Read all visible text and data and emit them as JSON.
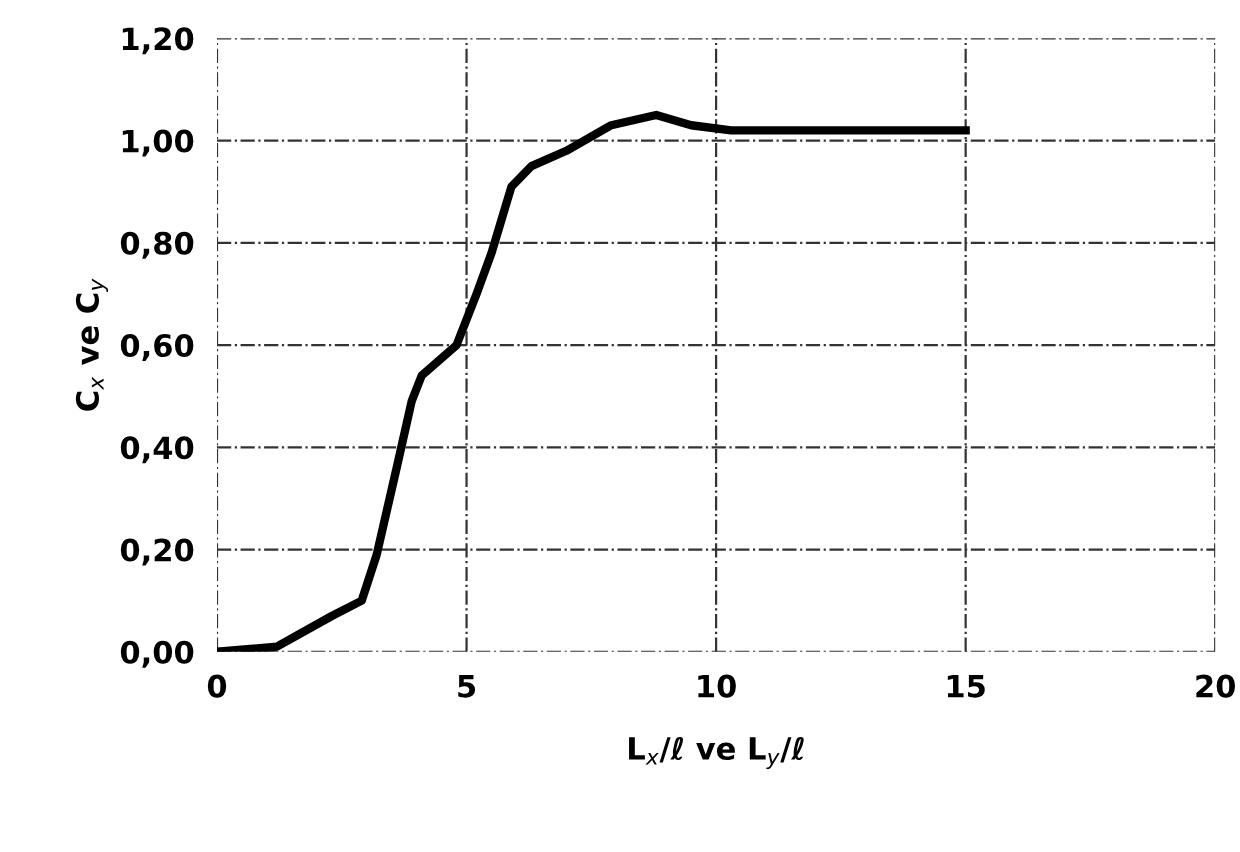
{
  "chart_data": {
    "type": "line",
    "xlabel": "L$_{x}$/ℓ ve L$_{y}$/ℓ",
    "ylabel": "C$_{x}$ ve C$_{y}$",
    "x": [
      0,
      1.2,
      2.3,
      2.9,
      3.2,
      3.6,
      3.9,
      4.1,
      4.8,
      5.2,
      5.5,
      5.9,
      6.3,
      7.0,
      7.9,
      8.8,
      9.5,
      10.3,
      12,
      15
    ],
    "series": [
      {
        "color": "#000000",
        "values": [
          0,
          0.01,
          0.07,
          0.1,
          0.19,
          0.36,
          0.49,
          0.54,
          0.6,
          0.7,
          0.78,
          0.91,
          0.95,
          0.98,
          1.03,
          1.05,
          1.03,
          1.02,
          1.02,
          1.02
        ]
      }
    ],
    "xlim": [
      0,
      20
    ],
    "xticks": [
      0,
      5,
      10,
      15,
      20
    ],
    "ylim": [
      0,
      1.2
    ],
    "yticks": [
      {
        "value": 0,
        "label": "0,00"
      },
      {
        "value": 0.2,
        "label": "0,20"
      },
      {
        "value": 0.4,
        "label": "0,40"
      },
      {
        "value": 0.6,
        "label": "0,60"
      },
      {
        "value": 0.8,
        "label": "0,80"
      },
      {
        "value": 1.0,
        "label": "1,00"
      },
      {
        "value": 1.2,
        "label": "1,20"
      }
    ],
    "grid": true,
    "line_style": "solid",
    "marker": "none"
  }
}
